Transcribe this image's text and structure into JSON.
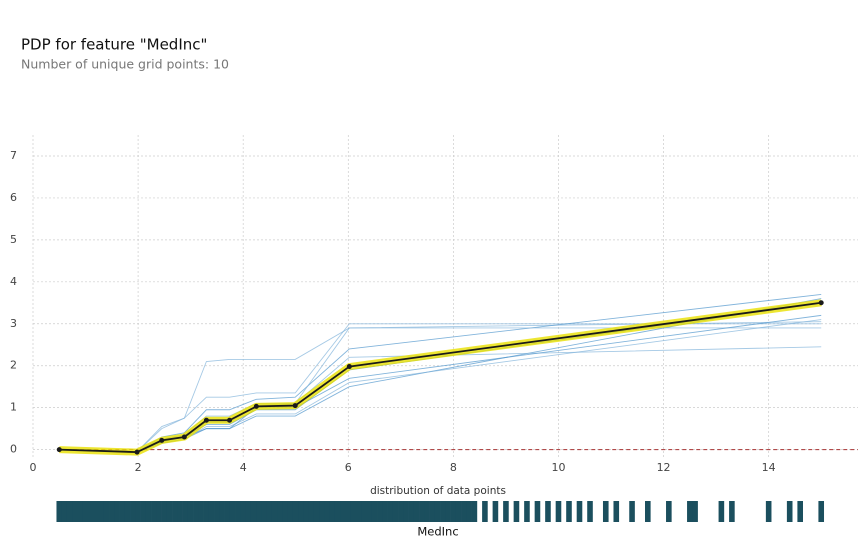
{
  "chart_data": {
    "type": "line",
    "title": "PDP for feature \"MedInc\"",
    "subtitle": "Number of unique grid points: 10",
    "x": [
      0.5,
      1.98,
      2.45,
      2.88,
      3.3,
      3.74,
      4.25,
      4.99,
      6.02,
      15.0
    ],
    "xlim": [
      0,
      15.7
    ],
    "xticks": [
      0,
      2,
      4,
      6,
      8,
      10,
      12,
      14
    ],
    "ylim": [
      -0.2,
      7.5
    ],
    "yticks": [
      0,
      1,
      2,
      3,
      4,
      5,
      6,
      7
    ],
    "grid": true,
    "reference_line": 0,
    "reference_color": "#a83232",
    "series": [
      {
        "color": "#7fb2da",
        "values": [
          0,
          -0.05,
          0.55,
          0.75,
          2.1,
          2.15,
          2.15,
          2.15,
          2.9,
          3.05
        ]
      },
      {
        "color": "#7fb2da",
        "values": [
          0,
          -0.05,
          0.5,
          0.75,
          1.25,
          1.25,
          1.35,
          1.35,
          3.0,
          3.0
        ]
      },
      {
        "color": "#4d94cc",
        "values": [
          0,
          -0.05,
          0.3,
          0.4,
          0.95,
          0.95,
          1.2,
          1.25,
          2.4,
          3.7
        ]
      },
      {
        "color": "#4d94cc",
        "values": [
          0,
          -0.05,
          0.2,
          0.3,
          0.6,
          0.6,
          0.95,
          0.95,
          1.9,
          3.5
        ]
      },
      {
        "color": "#4d94cc",
        "values": [
          0,
          -0.05,
          0.15,
          0.25,
          0.5,
          0.5,
          0.8,
          0.8,
          1.5,
          3.6
        ]
      },
      {
        "color": "#7fb2da",
        "values": [
          0,
          -0.05,
          0.15,
          0.25,
          0.55,
          0.55,
          0.85,
          0.85,
          1.6,
          3.1
        ]
      },
      {
        "color": "#7fb2da",
        "values": [
          0,
          -0.05,
          0.25,
          0.35,
          0.8,
          0.8,
          1.1,
          1.1,
          2.2,
          2.45
        ]
      },
      {
        "color": "#7fb2da",
        "values": [
          0,
          -0.05,
          0.2,
          0.3,
          0.65,
          0.65,
          1.05,
          1.1,
          2.9,
          2.9
        ]
      },
      {
        "color": "#4d94cc",
        "values": [
          0,
          -0.05,
          0.18,
          0.3,
          0.5,
          0.5,
          1.0,
          1.0,
          1.7,
          3.2
        ]
      },
      {
        "color": "#1a1a1a",
        "band_color": "#e8e000",
        "values": [
          0,
          -0.06,
          0.22,
          0.3,
          0.7,
          0.7,
          1.03,
          1.05,
          1.98,
          3.5
        ]
      }
    ],
    "distribution": {
      "title": "distribution of data points",
      "xlabel": "MedInc",
      "color": "#1b4f5e",
      "values": [
        0.5,
        0.6,
        0.7,
        0.8,
        0.9,
        1.0,
        1.1,
        1.2,
        1.3,
        1.4,
        1.5,
        1.6,
        1.7,
        1.8,
        1.9,
        2.0,
        2.1,
        2.2,
        2.3,
        2.4,
        2.5,
        2.6,
        2.7,
        2.8,
        2.9,
        3.0,
        3.1,
        3.2,
        3.3,
        3.4,
        3.5,
        3.6,
        3.7,
        3.8,
        3.9,
        4.0,
        4.1,
        4.2,
        4.3,
        4.4,
        4.5,
        4.6,
        4.7,
        4.8,
        4.9,
        5.0,
        5.1,
        5.2,
        5.3,
        5.4,
        5.5,
        5.6,
        5.7,
        5.8,
        5.9,
        6.0,
        6.1,
        6.2,
        6.3,
        6.4,
        6.5,
        6.6,
        6.7,
        6.8,
        6.9,
        7.0,
        7.1,
        7.2,
        7.3,
        7.4,
        7.5,
        7.6,
        7.7,
        7.8,
        7.9,
        8.0,
        8.1,
        8.2,
        8.3,
        8.4,
        8.6,
        8.8,
        9.0,
        9.2,
        9.4,
        9.6,
        9.8,
        10.0,
        10.2,
        10.4,
        10.6,
        10.9,
        11.1,
        11.4,
        11.7,
        12.1,
        12.5,
        12.6,
        13.1,
        13.3,
        14.0,
        14.4,
        14.6,
        15.0
      ]
    }
  }
}
